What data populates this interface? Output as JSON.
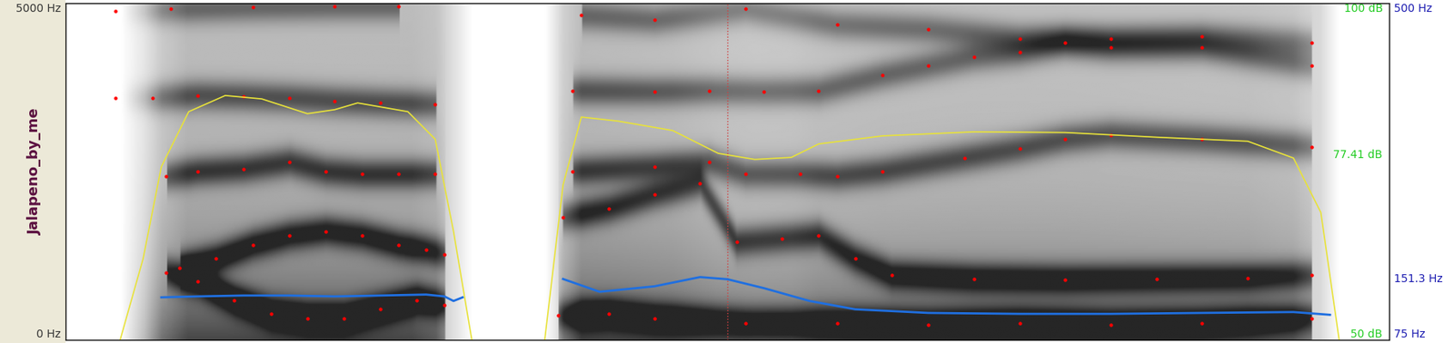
{
  "chart_data": {
    "type": "spectrogram",
    "ylabel": "Jalapeno_by_me",
    "xlim": [
      0,
      1.45
    ],
    "xticks": [],
    "cursor": 0.725,
    "ylim": [
      0,
      5000
    ],
    "yticks": [
      {
        "value": 5000,
        "label": "5000 Hz"
      },
      {
        "value": 0,
        "label": "0 Hz"
      }
    ],
    "y2lim": [
      50,
      100
    ],
    "y2ticks": [
      {
        "value": 100,
        "label": "100 dB"
      },
      {
        "value": 77.41,
        "label": "77.41 dB"
      },
      {
        "value": 50,
        "label": "50 dB"
      }
    ],
    "y3lim": [
      75,
      500
    ],
    "y3ticks": [
      {
        "value": 500,
        "label": "500 Hz"
      },
      {
        "value": 151.3,
        "label": "151.3 Hz"
      },
      {
        "value": 75,
        "label": "75 Hz"
      }
    ],
    "series": [
      {
        "type": "line",
        "axis": "y3",
        "color": "#1f6fe0",
        "line_style": "solid",
        "x": [
          0.105,
          0.145,
          0.195,
          0.245,
          0.295,
          0.345,
          0.395,
          0.415,
          0.425,
          0.435,
          0.49,
          0.545,
          0.585,
          0.645,
          0.695,
          0.725,
          0.765,
          0.815,
          0.865,
          0.945,
          1.045,
          1.145,
          1.245,
          1.345,
          1.385
        ],
        "values": [
          128.4,
          129.6,
          130.7,
          130.7,
          129.6,
          130.7,
          131.9,
          129.6,
          123.8,
          128.4,
          null,
          151.6,
          135.4,
          142.3,
          154.0,
          151.3,
          140.0,
          123.8,
          113.3,
          108.7,
          107.5,
          107.5,
          108.7,
          109.8,
          106.3
        ]
      },
      {
        "type": "line",
        "axis": "y2",
        "color": "#e8e23a",
        "line_style": "solid",
        "x": [
          0.06,
          0.085,
          0.105,
          0.135,
          0.175,
          0.215,
          0.265,
          0.295,
          0.32,
          0.375,
          0.405,
          0.425,
          0.445,
          0.485,
          0.525,
          0.545,
          0.565,
          0.605,
          0.665,
          0.715,
          0.755,
          0.795,
          0.825,
          0.895,
          0.995,
          1.095,
          1.195,
          1.295,
          1.345,
          1.375,
          1.395
        ],
        "values": [
          50,
          62,
          75.7,
          83.9,
          86.3,
          85.8,
          83.6,
          84.2,
          85.2,
          83.9,
          79.8,
          66.1,
          50,
          null,
          50,
          73,
          83.1,
          82.5,
          81.1,
          77.7,
          76.8,
          77.1,
          79.1,
          80.3,
          80.9,
          80.8,
          80.1,
          79.5,
          77,
          68.9,
          50
        ]
      },
      {
        "type": "scatter",
        "axis": "y",
        "color": "#ff0000",
        "marker": "dot",
        "x": [
          0.11,
          0.145,
          0.185,
          0.225,
          0.265,
          0.305,
          0.345,
          0.385,
          0.415,
          0.49,
          0.54,
          0.595,
          0.645,
          0.745,
          0.845,
          0.945,
          1.045,
          1.145,
          1.245,
          1.365
        ],
        "values": [
          997,
          861,
          587,
          382,
          314,
          314,
          451,
          587,
          519,
          null,
          355,
          382,
          314,
          246,
          246,
          219,
          246,
          219,
          246,
          314
        ]
      },
      {
        "type": "scatter",
        "axis": "y",
        "color": "#ff0000",
        "marker": "dot",
        "x": [
          0.125,
          0.165,
          0.205,
          0.245,
          0.285,
          0.325,
          0.365,
          0.395,
          0.415,
          0.49,
          0.545,
          0.595,
          0.645,
          0.695,
          0.735,
          0.785,
          0.825,
          0.865,
          0.905,
          0.995,
          1.095,
          1.195,
          1.295,
          1.365
        ],
        "values": [
          1066,
          1202,
          1407,
          1544,
          1612,
          1544,
          1407,
          1339,
          1270,
          null,
          1817,
          1953,
          2158,
          2322,
          1448,
          1503,
          1544,
          1202,
          956,
          902,
          888,
          902,
          915,
          956
        ]
      },
      {
        "type": "scatter",
        "axis": "y",
        "color": "#ff0000",
        "marker": "dot",
        "x": [
          0.11,
          0.145,
          0.195,
          0.245,
          0.285,
          0.325,
          0.365,
          0.405,
          0.49,
          0.555,
          0.645,
          0.705,
          0.745,
          0.805,
          0.845,
          0.895,
          0.985,
          1.045,
          1.095,
          1.145,
          1.245,
          1.365
        ],
        "values": [
          2431,
          2500,
          2541,
          2636,
          2500,
          2459,
          2459,
          2459,
          null,
          2500,
          2568,
          2636,
          2459,
          2459,
          2431,
          2500,
          2705,
          2841,
          2978,
          3046,
          2978,
          2869
        ]
      },
      {
        "type": "scatter",
        "axis": "y",
        "color": "#ff0000",
        "marker": "dot",
        "x": [
          0.055,
          0.095,
          0.145,
          0.195,
          0.245,
          0.295,
          0.345,
          0.405,
          0.49,
          0.555,
          0.645,
          0.705,
          0.765,
          0.825,
          0.895,
          0.945,
          0.995,
          1.045,
          1.095,
          1.145,
          1.245,
          1.365
        ],
        "values": [
          3593,
          3593,
          3634,
          3620,
          3593,
          3552,
          3524,
          3497,
          null,
          3702,
          3688,
          3702,
          3688,
          3702,
          3934,
          4071,
          4207,
          4276,
          4412,
          4344,
          4344,
          4071
        ]
      },
      {
        "type": "scatter",
        "axis": "y",
        "color": "#ff0000",
        "marker": "dot",
        "x": [
          0.055,
          0.115,
          0.205,
          0.295,
          0.365,
          0.49,
          0.565,
          0.645,
          0.745,
          0.845,
          0.945,
          1.045,
          1.145,
          1.245,
          1.365
        ],
        "values": [
          4890,
          4918,
          4945,
          4959,
          4959,
          null,
          4822,
          4754,
          4918,
          4685,
          4617,
          4480,
          4480,
          4508,
          4412
        ]
      }
    ]
  }
}
